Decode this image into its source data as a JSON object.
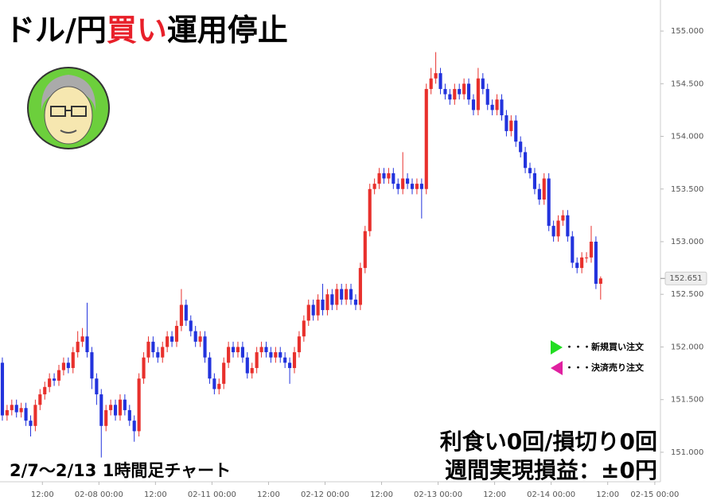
{
  "chart_data": {
    "type": "candlestick",
    "title": [
      "ドル/円",
      "買い",
      "運用停止"
    ],
    "period_label": "2/7〜2/13 1時間足チャート",
    "summary": [
      "利食い0回/損切り0回",
      "週間実現損益：±0円"
    ],
    "legend": [
      {
        "name": "・・・新規買い注文",
        "color": "#22dd22"
      },
      {
        "name": "・・・決済売り注文",
        "color": "#e020a0"
      }
    ],
    "up_color": "#e8302c",
    "down_color": "#2233dd",
    "last_price": 152.651,
    "xlim": [
      -0.5,
      139.7
    ],
    "xticks": [
      {
        "value": 8.5,
        "label": "12:00"
      },
      {
        "value": 20.5,
        "label": "02-08 00:00"
      },
      {
        "value": 32.5,
        "label": "12:00"
      },
      {
        "value": 44.5,
        "label": "02-11 00:00"
      },
      {
        "value": 56.5,
        "label": "12:00"
      },
      {
        "value": 68.5,
        "label": "02-12 00:00"
      },
      {
        "value": 80.5,
        "label": "12:00"
      },
      {
        "value": 92.5,
        "label": "02-13 00:00"
      },
      {
        "value": 104.5,
        "label": "12:00"
      },
      {
        "value": 116.5,
        "label": "02-14 00:00"
      },
      {
        "value": 128.5,
        "label": "12:00"
      },
      {
        "value": 138.5,
        "label": "02-15 00:00"
      }
    ],
    "ylim": [
      150.72,
      155.295
    ],
    "yticks": [
      {
        "value": 151,
        "label": "151.000"
      },
      {
        "value": 151.5,
        "label": "151.500"
      },
      {
        "value": 152,
        "label": "152.000"
      },
      {
        "value": 152.5,
        "label": "152.500"
      },
      {
        "value": 153,
        "label": "153.000"
      },
      {
        "value": 153.5,
        "label": "153.500"
      },
      {
        "value": 154,
        "label": "154.000"
      },
      {
        "value": 154.5,
        "label": "154.500"
      },
      {
        "value": 155,
        "label": "155.000"
      }
    ],
    "open": [
      151.85,
      151.35,
      151.4,
      151.45,
      151.38,
      151.42,
      151.3,
      151.25,
      151.45,
      151.55,
      151.62,
      151.7,
      151.68,
      151.78,
      151.85,
      151.8,
      151.95,
      152.05,
      152.1,
      151.95,
      151.7,
      151.55,
      151.25,
      151.4,
      151.45,
      151.35,
      151.5,
      151.4,
      151.3,
      151.2,
      151.7,
      151.9,
      152.05,
      151.95,
      151.9,
      152.0,
      152.1,
      152.05,
      152.2,
      152.4,
      152.25,
      152.15,
      152.05,
      152.1,
      151.9,
      151.7,
      151.6,
      151.65,
      151.85,
      152.0,
      151.95,
      152.0,
      151.9,
      151.75,
      151.8,
      151.95,
      152.0,
      151.95,
      151.9,
      151.95,
      151.9,
      151.85,
      151.8,
      151.95,
      152.1,
      152.25,
      152.4,
      152.3,
      152.45,
      152.35,
      152.5,
      152.4,
      152.55,
      152.45,
      152.55,
      152.45,
      152.4,
      152.75,
      153.1,
      153.5,
      153.55,
      153.65,
      153.6,
      153.65,
      153.55,
      153.5,
      153.6,
      153.55,
      153.5,
      153.55,
      153.5,
      154.45,
      154.55,
      154.6,
      154.45,
      154.4,
      154.35,
      154.45,
      154.4,
      154.5,
      154.35,
      154.25,
      154.55,
      154.45,
      154.3,
      154.25,
      154.35,
      154.2,
      154.05,
      154.15,
      153.95,
      153.85,
      153.7,
      153.65,
      153.5,
      153.4,
      153.6,
      153.15,
      153.05,
      153.2,
      153.25,
      153.05,
      152.8,
      152.75,
      152.85,
      152.85,
      153.0,
      152.6
    ],
    "high": [
      151.9,
      151.45,
      151.5,
      151.5,
      151.47,
      151.47,
      151.35,
      151.5,
      151.6,
      151.67,
      151.75,
      151.75,
      151.83,
      151.9,
      151.9,
      152.0,
      152.15,
      152.18,
      152.42,
      152.0,
      151.75,
      151.6,
      151.45,
      151.5,
      151.5,
      151.55,
      151.55,
      151.45,
      151.35,
      151.75,
      151.95,
      152.1,
      152.1,
      152.0,
      152.05,
      152.15,
      152.15,
      152.25,
      152.55,
      152.45,
      152.3,
      152.2,
      152.15,
      152.15,
      151.95,
      151.75,
      151.7,
      151.9,
      152.05,
      152.05,
      152.05,
      152.05,
      151.95,
      151.85,
      152.0,
      152.05,
      152.05,
      152.0,
      152.0,
      152.0,
      151.95,
      151.9,
      152.0,
      152.15,
      152.3,
      152.45,
      152.45,
      152.5,
      152.6,
      152.55,
      152.55,
      152.6,
      152.6,
      152.6,
      152.6,
      152.5,
      152.8,
      153.15,
      153.55,
      153.6,
      153.7,
      153.7,
      153.7,
      153.7,
      153.6,
      153.85,
      153.65,
      153.6,
      153.6,
      153.6,
      154.5,
      154.65,
      154.8,
      154.65,
      154.5,
      154.45,
      154.5,
      154.5,
      154.55,
      154.55,
      154.4,
      154.65,
      154.6,
      154.5,
      154.35,
      154.4,
      154.4,
      154.25,
      154.2,
      154.2,
      154.0,
      153.9,
      153.75,
      153.7,
      153.55,
      153.65,
      153.65,
      153.2,
      153.25,
      153.3,
      153.3,
      153.1,
      152.85,
      152.9,
      152.9,
      153.15,
      153.05,
      152.67
    ],
    "low": [
      151.3,
      151.3,
      151.35,
      151.33,
      151.33,
      151.25,
      151.15,
      151.2,
      151.4,
      151.5,
      151.57,
      151.63,
      151.63,
      151.73,
      151.75,
      151.75,
      151.9,
      152.0,
      151.9,
      151.6,
      151.45,
      150.95,
      151.2,
      151.35,
      151.3,
      151.3,
      151.35,
      151.25,
      151.1,
      151.15,
      151.65,
      151.85,
      151.9,
      151.85,
      151.85,
      151.95,
      152.0,
      152.0,
      152.15,
      152.2,
      152.1,
      152.0,
      152.0,
      151.85,
      151.65,
      151.55,
      151.55,
      151.6,
      151.8,
      151.9,
      151.9,
      151.85,
      151.7,
      151.7,
      151.75,
      151.9,
      151.9,
      151.85,
      151.85,
      151.85,
      151.8,
      151.65,
      151.75,
      151.9,
      152.05,
      152.2,
      152.25,
      152.25,
      152.3,
      152.3,
      152.35,
      152.35,
      152.4,
      152.4,
      152.4,
      152.35,
      152.35,
      152.7,
      153.05,
      153.45,
      153.5,
      153.55,
      153.55,
      153.5,
      153.45,
      153.45,
      153.5,
      153.45,
      153.45,
      153.22,
      153.45,
      154.4,
      154.5,
      154.4,
      154.35,
      154.3,
      154.3,
      154.35,
      154.35,
      154.3,
      154.2,
      154.2,
      154.4,
      154.25,
      154.2,
      154.2,
      154.15,
      154.0,
      154.0,
      153.9,
      153.8,
      153.65,
      153.6,
      153.45,
      153.35,
      153.35,
      153.1,
      153.0,
      153.0,
      153.15,
      153.0,
      152.75,
      152.7,
      152.7,
      152.8,
      152.8,
      152.55,
      152.45
    ],
    "close": [
      151.35,
      151.4,
      151.45,
      151.38,
      151.42,
      151.3,
      151.25,
      151.45,
      151.55,
      151.62,
      151.7,
      151.68,
      151.78,
      151.85,
      151.8,
      151.95,
      152.05,
      152.1,
      151.95,
      151.7,
      151.55,
      151.25,
      151.4,
      151.45,
      151.35,
      151.5,
      151.4,
      151.3,
      151.2,
      151.7,
      151.9,
      152.05,
      151.95,
      151.9,
      152.0,
      152.1,
      152.05,
      152.2,
      152.4,
      152.25,
      152.15,
      152.05,
      152.1,
      151.9,
      151.7,
      151.6,
      151.65,
      151.85,
      152.0,
      151.95,
      152.0,
      151.9,
      151.75,
      151.8,
      151.95,
      152.0,
      151.95,
      151.9,
      151.95,
      151.9,
      151.85,
      151.8,
      151.95,
      152.1,
      152.25,
      152.4,
      152.3,
      152.45,
      152.35,
      152.5,
      152.4,
      152.55,
      152.45,
      152.55,
      152.45,
      152.4,
      152.75,
      153.1,
      153.5,
      153.55,
      153.65,
      153.6,
      153.65,
      153.55,
      153.5,
      153.6,
      153.55,
      153.5,
      153.55,
      153.5,
      154.45,
      154.55,
      154.6,
      154.45,
      154.4,
      154.35,
      154.45,
      154.4,
      154.5,
      154.35,
      154.25,
      154.55,
      154.45,
      154.3,
      154.25,
      154.35,
      154.2,
      154.05,
      154.15,
      153.95,
      153.85,
      153.7,
      153.65,
      153.5,
      153.4,
      153.6,
      153.15,
      153.05,
      153.2,
      153.25,
      153.05,
      152.8,
      152.75,
      152.85,
      152.85,
      153.0,
      152.6,
      152.651
    ]
  }
}
